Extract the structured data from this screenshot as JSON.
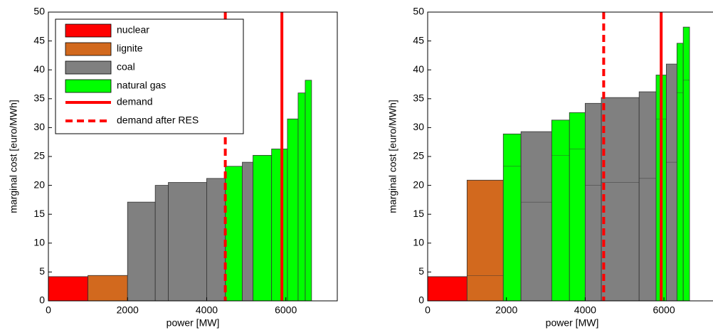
{
  "chart_data": [
    {
      "type": "bar",
      "xlabel": "power [MW]",
      "ylabel": "marginal cost [euro/MWh]",
      "xlim": [
        0,
        7300
      ],
      "ylim": [
        0,
        50
      ],
      "xticks": [
        0,
        2000,
        4000,
        6000
      ],
      "yticks": [
        0,
        5,
        10,
        15,
        20,
        25,
        30,
        35,
        40,
        45,
        50
      ],
      "fuels": [
        {
          "name": "nuclear",
          "color": "#ff0000"
        },
        {
          "name": "lignite",
          "color": "#d2691e"
        },
        {
          "name": "coal",
          "color": "#808080"
        },
        {
          "name": "natural gas",
          "color": "#00ff00"
        }
      ],
      "bars": {
        "x0": [
          0,
          1000,
          2000,
          2700,
          3030,
          4000,
          4470,
          4900,
          5170,
          5640,
          6040,
          6310,
          6490
        ],
        "x1": [
          1000,
          2000,
          2700,
          3030,
          4000,
          4470,
          4900,
          5170,
          5640,
          6040,
          6310,
          6490,
          6650
        ],
        "values": [
          4.2,
          4.4,
          17.1,
          20.0,
          20.5,
          21.2,
          23.3,
          24.0,
          25.2,
          26.3,
          31.5,
          36.0,
          38.2
        ],
        "fuel": [
          0,
          1,
          2,
          2,
          2,
          2,
          3,
          2,
          3,
          3,
          3,
          3,
          3
        ]
      },
      "lines": [
        {
          "name": "demand",
          "x": 5900,
          "color": "#ff0000",
          "dashed": false
        },
        {
          "name": "demand after RES",
          "x": 4470,
          "color": "#ff0000",
          "dashed": true
        }
      ]
    },
    {
      "type": "bar",
      "xlabel": "power [MW]",
      "ylabel": "marginal cost [euro/MWh]",
      "xlim": [
        0,
        7300
      ],
      "ylim": [
        0,
        50
      ],
      "xticks": [
        0,
        2000,
        4000,
        6000
      ],
      "yticks": [
        0,
        5,
        10,
        15,
        20,
        25,
        30,
        35,
        40,
        45,
        50
      ],
      "fuel_colors": [
        "#ff0000",
        "#d2691e",
        "#808080",
        "#00ff00"
      ],
      "bars": {
        "x0": [
          0,
          1000,
          1920,
          2370,
          3150,
          3600,
          4000,
          4410,
          5370,
          5800,
          6060,
          6330,
          6490
        ],
        "x1": [
          1000,
          1920,
          2370,
          3150,
          3600,
          4000,
          4410,
          5370,
          5800,
          6060,
          6330,
          6490,
          6650
        ],
        "values": [
          4.2,
          20.9,
          28.9,
          29.3,
          31.3,
          32.6,
          34.2,
          35.2,
          36.2,
          39.1,
          41.0,
          44.6,
          47.4
        ],
        "previous_values": [
          4.2,
          4.4,
          23.3,
          17.1,
          25.2,
          26.3,
          20.0,
          20.5,
          21.2,
          31.5,
          24.0,
          36.0,
          38.2
        ],
        "fuel": [
          0,
          1,
          3,
          2,
          3,
          3,
          2,
          2,
          2,
          3,
          2,
          3,
          3
        ]
      },
      "lines": [
        {
          "x": 5930,
          "color": "#ff0000",
          "dashed": false
        },
        {
          "x": 4470,
          "color": "#ff0000",
          "dashed": true
        }
      ]
    }
  ]
}
